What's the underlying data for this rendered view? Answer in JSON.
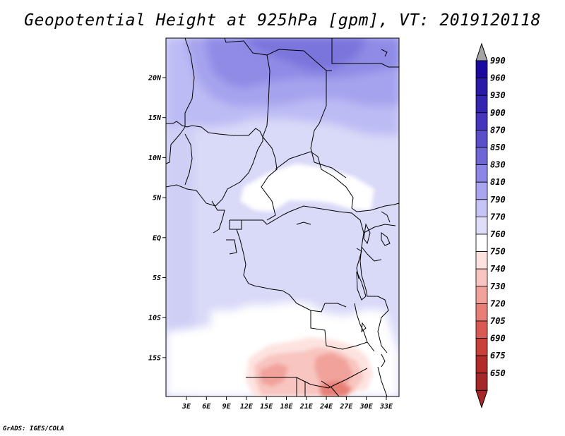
{
  "title": "Geopotential Height at 925hPa [gpm], VT: 2019120118",
  "credit": "GrADS: IGES/COLA",
  "map": {
    "region": "Central Africa",
    "lat_labels": [
      "20N",
      "15N",
      "10N",
      "5N",
      "EQ",
      "5S",
      "10S",
      "15S"
    ],
    "lon_labels": [
      "3E",
      "6E",
      "9E",
      "12E",
      "15E",
      "18E",
      "21E",
      "24E",
      "27E",
      "30E",
      "33E"
    ]
  },
  "colorbar": {
    "levels": [
      "990",
      "960",
      "930",
      "900",
      "870",
      "850",
      "830",
      "810",
      "790",
      "770",
      "760",
      "750",
      "740",
      "730",
      "720",
      "705",
      "690",
      "675",
      "650"
    ],
    "colors": [
      "#1c0a9e",
      "#2a1aa8",
      "#3526b2",
      "#4636be",
      "#5a4ec9",
      "#6e66d6",
      "#8c86e6",
      "#a9a5ef",
      "#c6c4f5",
      "#dedef9",
      "#ffffff",
      "#fde3e0",
      "#f8c5c0",
      "#f1a29b",
      "#e77f77",
      "#da5a53",
      "#c93f3a",
      "#b22b28",
      "#a52826"
    ],
    "over_color": "#a4a4a4",
    "under_color": "#a52826"
  }
}
